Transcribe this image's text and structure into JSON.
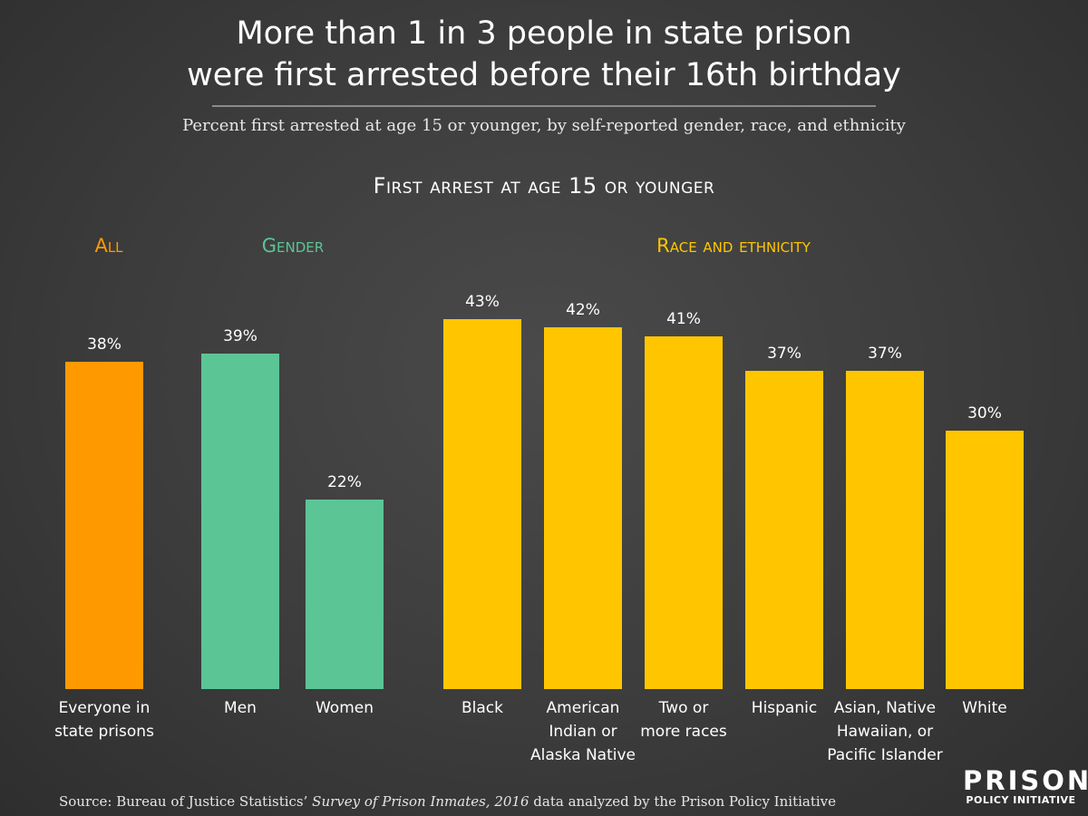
{
  "title_line1": "More than 1 in 3 people in state prison",
  "title_line2": "were first arrested before their 16th birthday",
  "subtitle": "Percent first arrested at age 15 or younger, by self-reported gender, race, and ethnicity",
  "source": {
    "prefix": "Source: Bureau of Justice Statistics’ ",
    "italic": "Survey of Prison Inmates, 2016",
    "suffix": " data analyzed by the Prison Policy Initiative"
  },
  "logo": {
    "top": "PRISON",
    "bottom": "POLICY INITIATIVE"
  },
  "colors": {
    "all": "#FF9900",
    "gender": "#5BC596",
    "race": "#FFC600"
  },
  "chart_data": {
    "type": "bar",
    "title": "First arrest at age 15 or younger",
    "ylim": [
      0,
      45
    ],
    "grid": false,
    "legend": "none",
    "value_suffix": "%",
    "groups": [
      {
        "name": "All",
        "color_key": "all",
        "categories": [
          "Everyone in state prisons"
        ],
        "values": [
          38
        ]
      },
      {
        "name": "Gender",
        "color_key": "gender",
        "categories": [
          "Men",
          "Women"
        ],
        "values": [
          39,
          22
        ]
      },
      {
        "name": "Race and ethnicity",
        "color_key": "race",
        "categories": [
          "Black",
          "American Indian or Alaska Native",
          "Two or more races",
          "Hispanic",
          "Asian, Native Hawaiian, or Pacific Islander",
          "White"
        ],
        "values": [
          43,
          42,
          41,
          37,
          37,
          30
        ]
      }
    ]
  }
}
